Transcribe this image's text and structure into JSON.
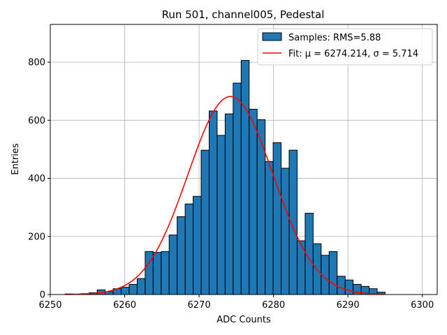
{
  "chart_data": {
    "type": "bar",
    "title": "Run 501, channel005, Pedestal",
    "xlabel": "ADC Counts",
    "ylabel": "Entries",
    "xlim": [
      6250,
      6302
    ],
    "ylim": [
      0,
      930
    ],
    "xticks": [
      6250,
      6260,
      6270,
      6280,
      6290,
      6300
    ],
    "yticks": [
      0,
      200,
      400,
      600,
      800
    ],
    "grid": true,
    "legend_position": "top-right",
    "bin_width": 1.075,
    "histogram": {
      "name": "Samples: RMS=5.88",
      "bin_starts": [
        6252.0,
        6253.075,
        6254.15,
        6255.225,
        6256.3,
        6257.375,
        6258.45,
        6259.525,
        6260.6,
        6261.675,
        6262.75,
        6263.825,
        6264.9,
        6265.975,
        6267.05,
        6268.125,
        6269.2,
        6270.275,
        6271.35,
        6272.425,
        6273.5,
        6274.575,
        6275.65,
        6276.725,
        6277.8,
        6278.875,
        6279.95,
        6281.025,
        6282.1,
        6283.175,
        6284.25,
        6285.325,
        6286.4,
        6287.475,
        6288.55,
        6289.625,
        6290.7,
        6291.775,
        6292.85,
        6293.925
      ],
      "values": [
        2,
        1,
        3,
        6,
        16,
        10,
        20,
        25,
        35,
        55,
        148,
        145,
        148,
        205,
        268,
        312,
        338,
        497,
        632,
        548,
        622,
        728,
        806,
        638,
        602,
        458,
        523,
        435,
        497,
        185,
        280,
        175,
        135,
        148,
        63,
        50,
        35,
        28,
        20,
        8
      ]
    },
    "fit": {
      "name": "Fit: μ = 6274.214, σ = 5.714",
      "type": "gaussian",
      "mu": 6274.214,
      "sigma": 5.714,
      "amplitude": 682,
      "x_range": [
        6252,
        6295
      ]
    },
    "colors": {
      "bar_fill": "#1f77b4",
      "bar_edge": "#000000",
      "fit_line": "#ff0000",
      "grid": "#b0b0b0"
    }
  }
}
